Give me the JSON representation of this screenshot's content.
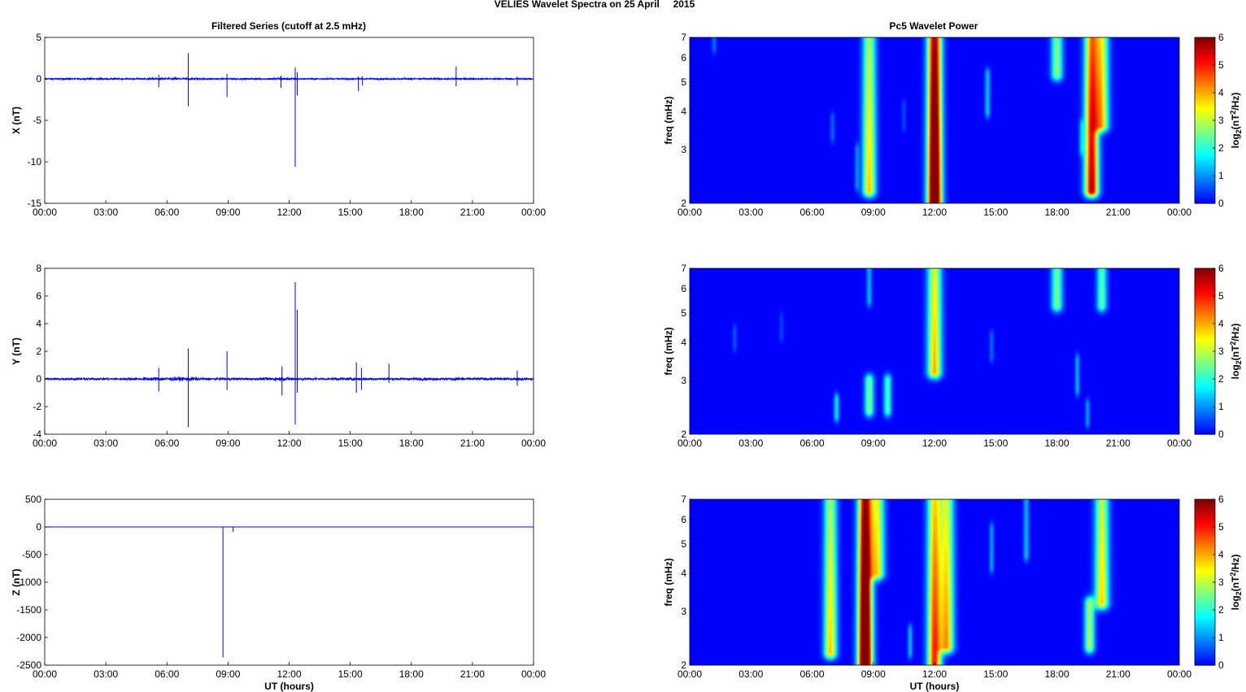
{
  "figure": {
    "suptitle": "VELIES Wavelet Spectra on 25 April     2015",
    "left_column_title": "Filtered Series (cutoff at 2.5 mHz)",
    "right_column_title": "Pc5 Wavelet Power"
  },
  "chart_data": [
    {
      "id": "x-series",
      "type": "line",
      "title": "Filtered Series (cutoff at 2.5 mHz)",
      "ylabel": "X (nT)",
      "xlabel": "",
      "xlim": [
        0,
        24
      ],
      "ylim": [
        -15,
        5
      ],
      "yticks": [
        5,
        0,
        -5,
        -10,
        -15
      ],
      "x_ticklabels": [
        "00:00",
        "03:00",
        "06:00",
        "09:00",
        "12:00",
        "15:00",
        "18:00",
        "21:00",
        "00:00"
      ],
      "color": "#0000ff",
      "noise_amplitude": 0.15,
      "spikes": [
        {
          "x": 5.6,
          "y": [
            -1.0,
            0.5
          ]
        },
        {
          "x": 7.05,
          "y": [
            -3.3,
            3.1
          ]
        },
        {
          "x": 8.95,
          "y": [
            -2.2,
            0.6
          ]
        },
        {
          "x": 11.6,
          "y": [
            -1.1,
            0.4
          ]
        },
        {
          "x": 12.3,
          "y": [
            -10.6,
            1.4
          ]
        },
        {
          "x": 12.4,
          "y": [
            -2.0,
            0.8
          ]
        },
        {
          "x": 15.4,
          "y": [
            -1.5,
            0.3
          ]
        },
        {
          "x": 15.6,
          "y": [
            -0.8,
            0.3
          ]
        },
        {
          "x": 20.2,
          "y": [
            -0.9,
            1.5
          ]
        },
        {
          "x": 23.2,
          "y": [
            -0.8,
            0.3
          ]
        }
      ]
    },
    {
      "id": "y-series",
      "type": "line",
      "title": "",
      "ylabel": "Y (nT)",
      "xlabel": "",
      "xlim": [
        0,
        24
      ],
      "ylim": [
        -4,
        8
      ],
      "yticks": [
        8,
        6,
        4,
        2,
        0,
        -2,
        -4
      ],
      "x_ticklabels": [
        "00:00",
        "03:00",
        "06:00",
        "09:00",
        "12:00",
        "15:00",
        "18:00",
        "21:00",
        "00:00"
      ],
      "color": "#0000ff",
      "noise_amplitude": 0.15,
      "spikes": [
        {
          "x": 5.6,
          "y": [
            -0.9,
            0.8
          ]
        },
        {
          "x": 7.05,
          "y": [
            -3.5,
            2.2
          ]
        },
        {
          "x": 8.95,
          "y": [
            -0.8,
            2.0
          ]
        },
        {
          "x": 11.65,
          "y": [
            -1.2,
            0.9
          ]
        },
        {
          "x": 12.3,
          "y": [
            -3.3,
            7.0
          ]
        },
        {
          "x": 12.4,
          "y": [
            -1.0,
            5.0
          ]
        },
        {
          "x": 15.3,
          "y": [
            -1.0,
            1.2
          ]
        },
        {
          "x": 15.55,
          "y": [
            -0.8,
            0.8
          ]
        },
        {
          "x": 16.9,
          "y": [
            -0.3,
            1.1
          ]
        },
        {
          "x": 23.2,
          "y": [
            -0.5,
            0.6
          ]
        }
      ]
    },
    {
      "id": "z-series",
      "type": "line",
      "title": "",
      "ylabel": "Z (nT)",
      "xlabel": "UT (hours)",
      "xlim": [
        0,
        24
      ],
      "ylim": [
        -2500,
        500
      ],
      "yticks": [
        500,
        0,
        -500,
        -1000,
        -1500,
        -2000,
        -2500
      ],
      "x_ticklabels": [
        "00:00",
        "03:00",
        "06:00",
        "09:00",
        "12:00",
        "15:00",
        "18:00",
        "21:00",
        "00:00"
      ],
      "color": "#0000ff",
      "noise_amplitude": 0,
      "spikes": [
        {
          "x": 8.75,
          "y": [
            -2360,
            0
          ]
        },
        {
          "x": 9.25,
          "y": [
            -90,
            0
          ]
        }
      ]
    },
    {
      "id": "x-wavelet",
      "type": "heatmap",
      "title": "Pc5 Wavelet Power",
      "ylabel": "freq (mHz)",
      "xlabel": "",
      "xlim": [
        0,
        24
      ],
      "ylim": [
        2,
        7
      ],
      "yscale": "log",
      "yticks": [
        2,
        3,
        4,
        5,
        6,
        7
      ],
      "x_ticklabels": [
        "00:00",
        "03:00",
        "06:00",
        "09:00",
        "12:00",
        "15:00",
        "18:00",
        "21:00",
        "00:00"
      ],
      "colorbar": {
        "label": "log2(nT2/Hz)",
        "range": [
          0,
          6
        ],
        "ticks": [
          0,
          1,
          2,
          3,
          4,
          5,
          6
        ]
      },
      "features": [
        {
          "t": 1.2,
          "f": [
            6.5,
            7.0
          ],
          "power": 0.8
        },
        {
          "t": 7.0,
          "f": [
            3.3,
            3.8
          ],
          "power": 0.6
        },
        {
          "t": 8.2,
          "f": [
            2.3,
            3.0
          ],
          "power": 0.7
        },
        {
          "t": 8.8,
          "f": [
            2.2,
            7.0
          ],
          "power": 2.8
        },
        {
          "t": 10.5,
          "f": [
            3.6,
            4.2
          ],
          "power": 0.4
        },
        {
          "t": 12.0,
          "f": [
            2.0,
            7.0
          ],
          "power": 5.8
        },
        {
          "t": 14.6,
          "f": [
            4.0,
            5.3
          ],
          "power": 1.2
        },
        {
          "t": 18.0,
          "f": [
            5.3,
            7.0
          ],
          "power": 2.5
        },
        {
          "t": 19.2,
          "f": [
            3.0,
            3.6
          ],
          "power": 0.8
        },
        {
          "t": 19.7,
          "f": [
            2.2,
            7.0
          ],
          "power": 4.2
        },
        {
          "t": 20.2,
          "f": [
            3.6,
            7.0
          ],
          "power": 3.0
        }
      ]
    },
    {
      "id": "y-wavelet",
      "type": "heatmap",
      "title": "",
      "ylabel": "freq (mHz)",
      "xlabel": "",
      "xlim": [
        0,
        24
      ],
      "ylim": [
        2,
        7
      ],
      "yscale": "log",
      "yticks": [
        2,
        3,
        4,
        5,
        6,
        7
      ],
      "x_ticklabels": [
        "00:00",
        "03:00",
        "06:00",
        "09:00",
        "12:00",
        "15:00",
        "18:00",
        "21:00",
        "00:00"
      ],
      "colorbar": {
        "label": "log2(nT2/Hz)",
        "range": [
          0,
          6
        ],
        "ticks": [
          0,
          1,
          2,
          3,
          4,
          5,
          6
        ]
      },
      "features": [
        {
          "t": 2.2,
          "f": [
            3.9,
            4.4
          ],
          "power": 0.5
        },
        {
          "t": 4.5,
          "f": [
            4.2,
            4.8
          ],
          "power": 0.4
        },
        {
          "t": 7.2,
          "f": [
            2.3,
            2.6
          ],
          "power": 1.2
        },
        {
          "t": 8.8,
          "f": [
            2.4,
            3.0
          ],
          "power": 2.0
        },
        {
          "t": 8.8,
          "f": [
            5.5,
            7.0
          ],
          "power": 1.2
        },
        {
          "t": 9.7,
          "f": [
            2.4,
            3.0
          ],
          "power": 1.7
        },
        {
          "t": 12.0,
          "f": [
            3.2,
            7.0
          ],
          "power": 3.2
        },
        {
          "t": 14.8,
          "f": [
            3.6,
            4.2
          ],
          "power": 0.6
        },
        {
          "t": 18.0,
          "f": [
            5.3,
            7.0
          ],
          "power": 2.4
        },
        {
          "t": 19.0,
          "f": [
            2.8,
            3.5
          ],
          "power": 1.0
        },
        {
          "t": 19.5,
          "f": [
            2.2,
            2.5
          ],
          "power": 0.8
        },
        {
          "t": 20.2,
          "f": [
            5.3,
            7.0
          ],
          "power": 2.2
        }
      ]
    },
    {
      "id": "z-wavelet",
      "type": "heatmap",
      "title": "",
      "ylabel": "freq (mHz)",
      "xlabel": "UT (hours)",
      "xlim": [
        0,
        24
      ],
      "ylim": [
        2,
        7
      ],
      "yscale": "log",
      "yticks": [
        2,
        3,
        4,
        5,
        6,
        7
      ],
      "x_ticklabels": [
        "00:00",
        "03:00",
        "06:00",
        "09:00",
        "12:00",
        "15:00",
        "18:00",
        "21:00",
        "00:00"
      ],
      "colorbar": {
        "label": "log2(nT2/Hz)",
        "range": [
          0,
          6
        ],
        "ticks": [
          0,
          1,
          2,
          3,
          4,
          5,
          6
        ]
      },
      "features": [
        {
          "t": 6.9,
          "f": [
            2.2,
            7.0
          ],
          "power": 2.8
        },
        {
          "t": 8.6,
          "f": [
            2.0,
            7.0
          ],
          "power": 6.0
        },
        {
          "t": 9.2,
          "f": [
            4.0,
            7.0
          ],
          "power": 3.0
        },
        {
          "t": 10.8,
          "f": [
            2.2,
            2.6
          ],
          "power": 1.0
        },
        {
          "t": 12.0,
          "f": [
            2.0,
            7.0
          ],
          "power": 3.6
        },
        {
          "t": 12.6,
          "f": [
            2.3,
            7.0
          ],
          "power": 3.0
        },
        {
          "t": 14.8,
          "f": [
            4.2,
            5.6
          ],
          "power": 1.0
        },
        {
          "t": 16.5,
          "f": [
            4.6,
            7.0
          ],
          "power": 1.2
        },
        {
          "t": 19.6,
          "f": [
            2.3,
            3.2
          ],
          "power": 2.2
        },
        {
          "t": 20.2,
          "f": [
            3.2,
            7.0
          ],
          "power": 3.0
        }
      ]
    }
  ]
}
